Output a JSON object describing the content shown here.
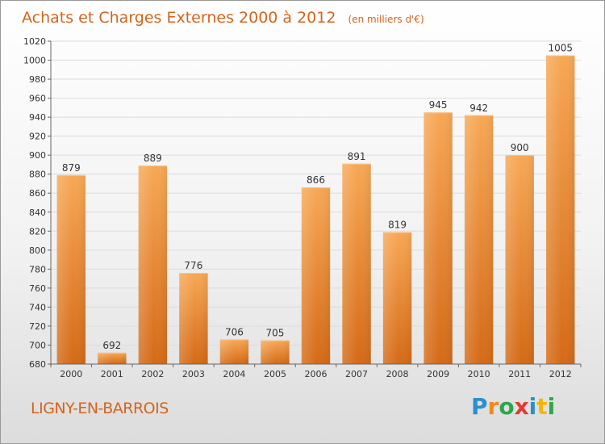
{
  "chart_data": {
    "type": "bar",
    "title": "Achats et Charges Externes 2000 à 2012",
    "subtitle": "(en milliers d'€)",
    "categories": [
      "2000",
      "2001",
      "2002",
      "2003",
      "2004",
      "2005",
      "2006",
      "2007",
      "2008",
      "2009",
      "2010",
      "2011",
      "2012"
    ],
    "values": [
      879,
      692,
      889,
      776,
      706,
      705,
      866,
      891,
      819,
      945,
      942,
      900,
      1005
    ],
    "value_labels": [
      "879",
      "692",
      "889",
      "776",
      "706",
      "705",
      "866",
      "891",
      "819",
      "945",
      "942",
      "900",
      "1005"
    ],
    "ylim": [
      680,
      1020
    ],
    "yticks": [
      680,
      700,
      720,
      740,
      760,
      780,
      800,
      820,
      840,
      860,
      880,
      900,
      920,
      940,
      960,
      980,
      1000,
      1020
    ],
    "grid": true,
    "bar_color": "#f0913a"
  },
  "footer": {
    "commune": "LIGNY-EN-BARROIS",
    "logo_letters": [
      "P",
      "r",
      "o",
      "x",
      "i",
      "t",
      "i"
    ],
    "logo_colors": [
      "#2b8fd1",
      "#f28a1a",
      "#2aa84a",
      "#e53935",
      "#2b8fd1",
      "#f2b705",
      "#2aa84a"
    ]
  }
}
